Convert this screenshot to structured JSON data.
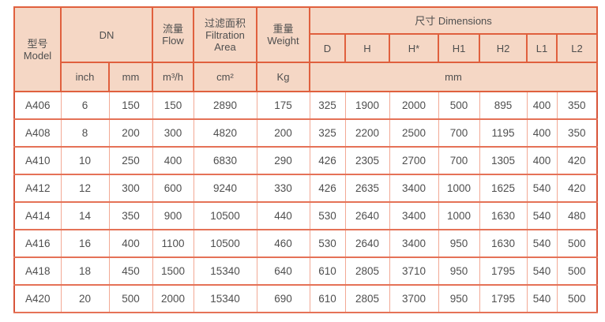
{
  "table": {
    "header": {
      "model": "型号\nModel",
      "dn": "DN",
      "inch": "inch",
      "mm": "mm",
      "flow": "流量\nFlow",
      "flow_unit": "m³/h",
      "filtration": "过滤面积\nFiltration\nArea",
      "filtration_unit": "cm²",
      "weight": "重量\nWeight",
      "weight_unit": "Kg",
      "dimensions": "尺寸 Dimensions",
      "dim_cols": [
        "D",
        "H",
        "H*",
        "H1",
        "H2",
        "L1",
        "L2"
      ],
      "dim_unit": "mm"
    },
    "rows": [
      {
        "model": "A406",
        "values": [
          "6",
          "150",
          "150",
          "2890",
          "175",
          "325",
          "1900",
          "2000",
          "500",
          "895",
          "400",
          "350"
        ]
      },
      {
        "model": "A408",
        "values": [
          "8",
          "200",
          "300",
          "4820",
          "200",
          "325",
          "2200",
          "2500",
          "700",
          "1195",
          "400",
          "350"
        ]
      },
      {
        "model": "A410",
        "values": [
          "10",
          "250",
          "400",
          "6830",
          "290",
          "426",
          "2305",
          "2700",
          "700",
          "1305",
          "400",
          "420"
        ]
      },
      {
        "model": "A412",
        "values": [
          "12",
          "300",
          "600",
          "9240",
          "330",
          "426",
          "2635",
          "3400",
          "1000",
          "1625",
          "540",
          "420"
        ]
      },
      {
        "model": "A414",
        "values": [
          "14",
          "350",
          "900",
          "10500",
          "440",
          "530",
          "2640",
          "3400",
          "1000",
          "1630",
          "540",
          "480"
        ]
      },
      {
        "model": "A416",
        "values": [
          "16",
          "400",
          "1100",
          "10500",
          "460",
          "530",
          "2640",
          "3400",
          "950",
          "1630",
          "540",
          "500"
        ]
      },
      {
        "model": "A418",
        "values": [
          "18",
          "450",
          "1500",
          "15340",
          "640",
          "610",
          "2805",
          "3710",
          "950",
          "1795",
          "540",
          "500"
        ]
      },
      {
        "model": "A420",
        "values": [
          "20",
          "500",
          "2000",
          "15340",
          "690",
          "610",
          "2805",
          "3700",
          "950",
          "1795",
          "540",
          "500"
        ]
      }
    ]
  },
  "colors": {
    "header-bg": "#f5d7c5",
    "header-border": "#e0603e",
    "outer-border": "#d8553a",
    "dark-border": "#c44d2f",
    "row-border": "#e57257",
    "light-border": "#f2a995",
    "text": "#4f4f4f"
  }
}
